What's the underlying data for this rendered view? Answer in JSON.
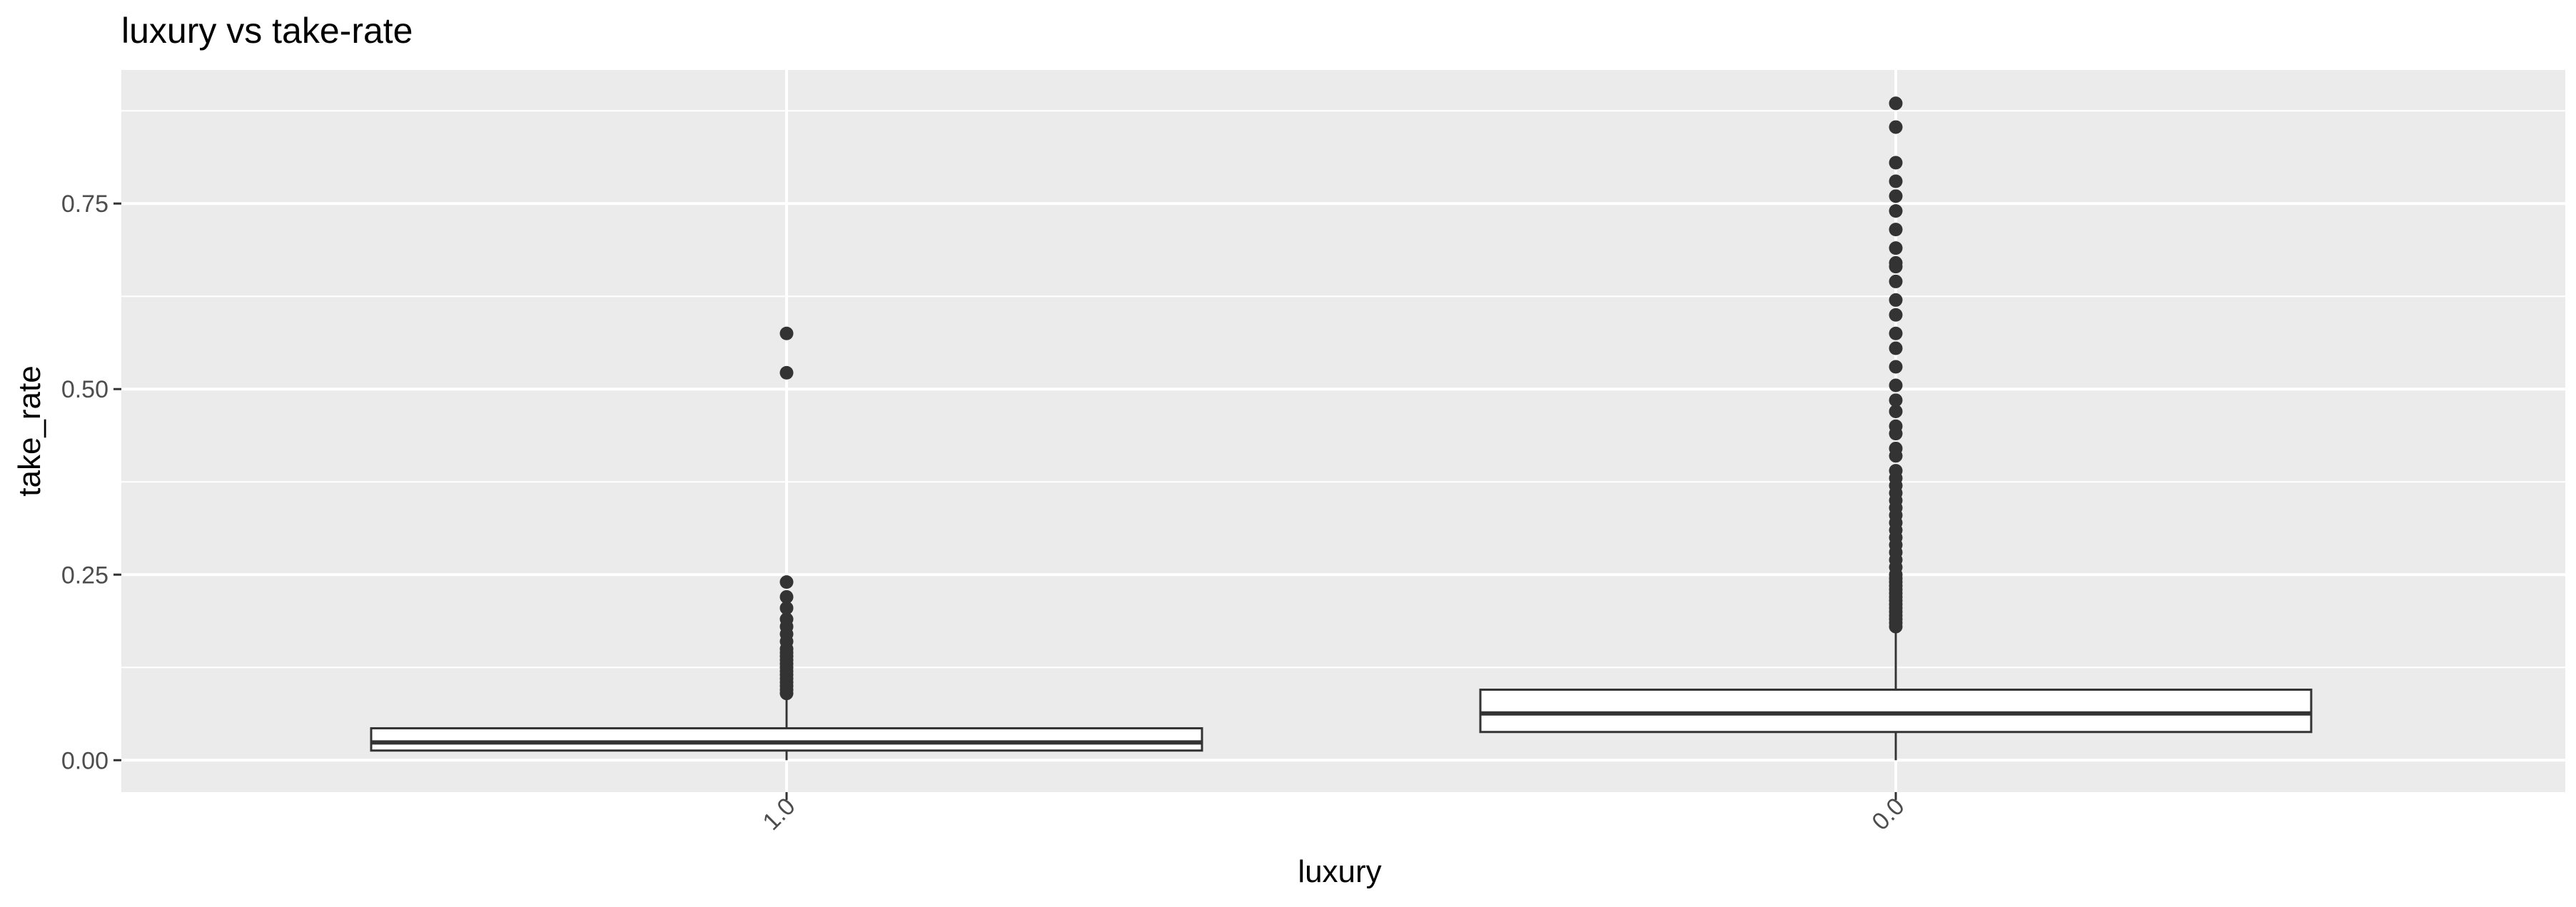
{
  "chart_data": {
    "type": "box",
    "title": "luxury vs take-rate",
    "xlabel": "luxury",
    "ylabel": "take_rate",
    "categories": [
      "1.0",
      "0.0"
    ],
    "y_ticks": [
      0.0,
      0.25,
      0.5,
      0.75
    ],
    "y_tick_labels": [
      "0.00",
      "0.25",
      "0.50",
      "0.75"
    ],
    "ylim": [
      -0.043,
      0.93
    ],
    "grid": true,
    "legend": "none",
    "colors": {
      "panel": "#ebebeb",
      "gridline": "#ffffff",
      "box_fill": "#ffffff",
      "box_line": "#333333",
      "outlier": "#333333",
      "tick_text": "#4d4d4d"
    },
    "boxes": [
      {
        "category": "1.0",
        "min": 0.0,
        "q1": 0.013,
        "median": 0.024,
        "q3": 0.043,
        "max": 0.085,
        "outliers": [
          0.09,
          0.095,
          0.1,
          0.105,
          0.11,
          0.115,
          0.12,
          0.125,
          0.13,
          0.135,
          0.14,
          0.145,
          0.15,
          0.16,
          0.17,
          0.18,
          0.19,
          0.205,
          0.22,
          0.24,
          0.522,
          0.575
        ]
      },
      {
        "category": "0.0",
        "min": 0.0,
        "q1": 0.038,
        "median": 0.063,
        "q3": 0.095,
        "max": 0.178,
        "outliers": [
          0.18,
          0.185,
          0.19,
          0.195,
          0.2,
          0.205,
          0.21,
          0.215,
          0.22,
          0.225,
          0.23,
          0.235,
          0.24,
          0.245,
          0.25,
          0.26,
          0.27,
          0.28,
          0.29,
          0.3,
          0.31,
          0.32,
          0.33,
          0.34,
          0.35,
          0.36,
          0.37,
          0.38,
          0.39,
          0.41,
          0.42,
          0.44,
          0.45,
          0.47,
          0.485,
          0.505,
          0.53,
          0.555,
          0.575,
          0.6,
          0.62,
          0.645,
          0.665,
          0.67,
          0.69,
          0.715,
          0.74,
          0.76,
          0.78,
          0.805,
          0.853,
          0.885
        ]
      }
    ]
  }
}
